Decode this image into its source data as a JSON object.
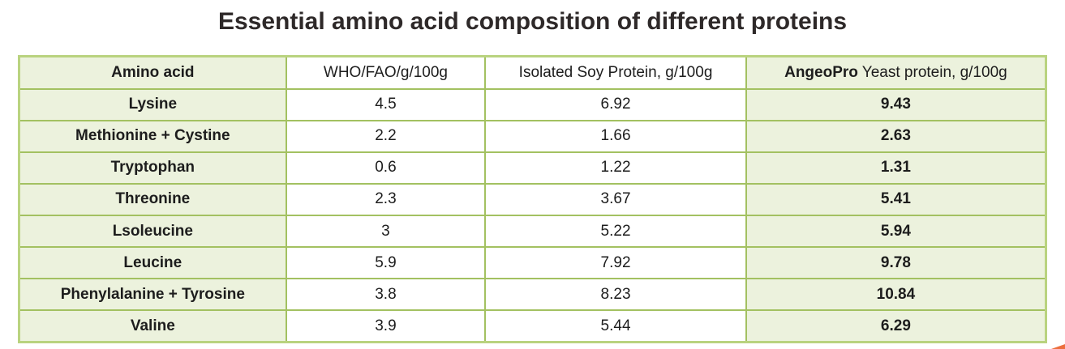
{
  "title": "Essential amino acid composition of different proteins",
  "table": {
    "headers": {
      "amino_acid": "Amino acid",
      "who_fao": "WHO/FAO/g/100g",
      "soy": "Isolated Soy Protein, g/100g",
      "angeopro_bold": "AngeoPro",
      "angeopro_rest": " Yeast protein, g/100g"
    },
    "rows": [
      [
        "Lysine",
        "4.5",
        "6.92",
        "9.43"
      ],
      [
        "Methionine + Cystine",
        "2.2",
        "1.66",
        "2.63"
      ],
      [
        "Tryptophan",
        "0.6",
        "1.22",
        "1.31"
      ],
      [
        "Threonine",
        "2.3",
        "3.67",
        "5.41"
      ],
      [
        "Lsoleucine",
        "3",
        "5.22",
        "5.94"
      ],
      [
        "Leucine",
        "5.9",
        "7.92",
        "9.78"
      ],
      [
        "Phenylalanine + Tyrosine",
        "3.8",
        "8.23",
        "10.84"
      ],
      [
        "Valine",
        "3.9",
        "5.44",
        "6.29"
      ]
    ]
  },
  "colors": {
    "cell_green": "#ecf2dd",
    "grid_line": "#a3c161",
    "outer_border": "#b9d37f",
    "accent_orange": "#ec6f3e",
    "text": "#1d1d1d"
  },
  "chart_data": {
    "type": "table",
    "title": "Essential amino acid composition of different proteins",
    "columns": [
      "Amino acid",
      "WHO/FAO/g/100g",
      "Isolated Soy Protein, g/100g",
      "AngeoPro Yeast protein, g/100g"
    ],
    "rows": [
      {
        "amino_acid": "Lysine",
        "who_fao_g_100g": 4.5,
        "isolated_soy_protein_g_100g": 6.92,
        "angeopro_yeast_protein_g_100g": 9.43
      },
      {
        "amino_acid": "Methionine + Cystine",
        "who_fao_g_100g": 2.2,
        "isolated_soy_protein_g_100g": 1.66,
        "angeopro_yeast_protein_g_100g": 2.63
      },
      {
        "amino_acid": "Tryptophan",
        "who_fao_g_100g": 0.6,
        "isolated_soy_protein_g_100g": 1.22,
        "angeopro_yeast_protein_g_100g": 1.31
      },
      {
        "amino_acid": "Threonine",
        "who_fao_g_100g": 2.3,
        "isolated_soy_protein_g_100g": 3.67,
        "angeopro_yeast_protein_g_100g": 5.41
      },
      {
        "amino_acid": "Lsoleucine",
        "who_fao_g_100g": 3,
        "isolated_soy_protein_g_100g": 5.22,
        "angeopro_yeast_protein_g_100g": 5.94
      },
      {
        "amino_acid": "Leucine",
        "who_fao_g_100g": 5.9,
        "isolated_soy_protein_g_100g": 7.92,
        "angeopro_yeast_protein_g_100g": 9.78
      },
      {
        "amino_acid": "Phenylalanine + Tyrosine",
        "who_fao_g_100g": 3.8,
        "isolated_soy_protein_g_100g": 8.23,
        "angeopro_yeast_protein_g_100g": 10.84
      },
      {
        "amino_acid": "Valine",
        "who_fao_g_100g": 3.9,
        "isolated_soy_protein_g_100g": 5.44,
        "angeopro_yeast_protein_g_100g": 6.29
      }
    ]
  }
}
